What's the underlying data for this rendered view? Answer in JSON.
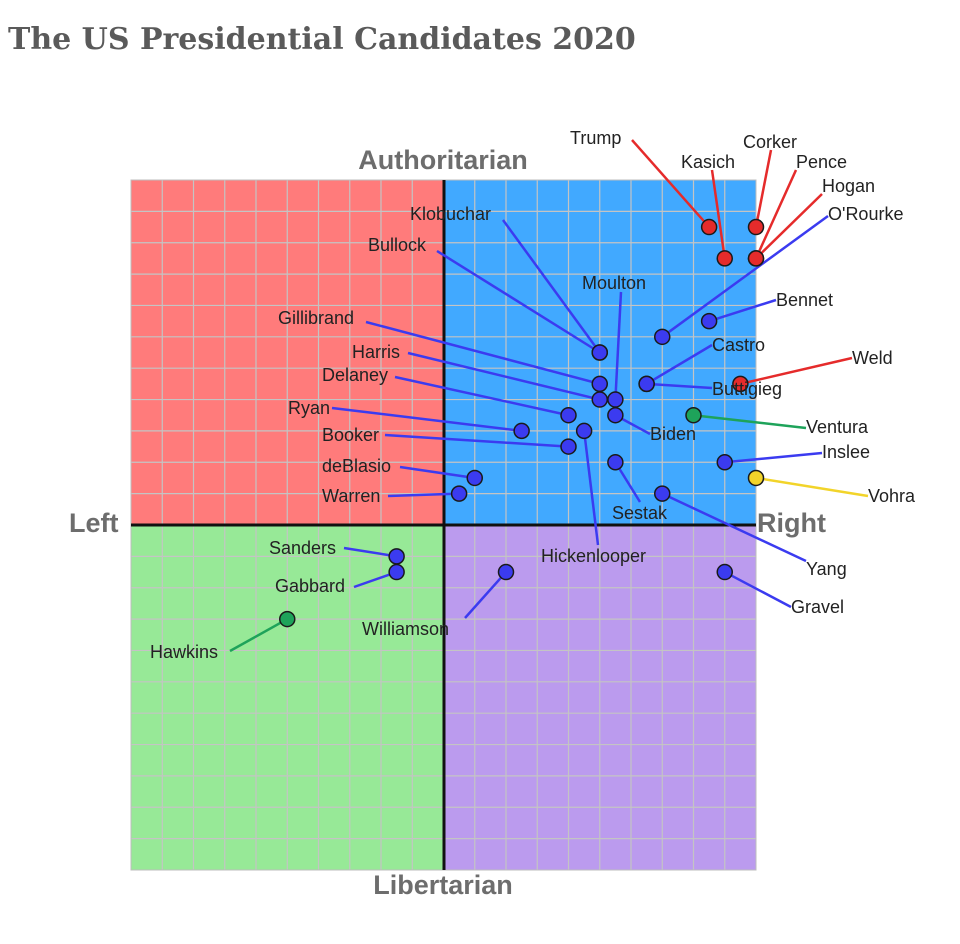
{
  "title": "The US Presidential Candidates 2020",
  "chart_data": {
    "type": "scatter",
    "title": "The US Presidential Candidates 2020",
    "axes": {
      "top": "Authoritarian",
      "bottom": "Libertarian",
      "left": "Left",
      "right": "Right"
    },
    "xlim": [
      -10,
      10
    ],
    "ylim": [
      -11,
      11
    ],
    "grid": true,
    "quadrant_colors": {
      "authoritarian_left": "#ff7b7b",
      "authoritarian_right": "#41a9ff",
      "libertarian_left": "#97e997",
      "libertarian_right": "#bb9bee"
    },
    "party_colors": {
      "republican": "#e52b2b",
      "democrat": "#3b3bf0",
      "green": "#1ea35a",
      "libertarian": "#f2d42a"
    },
    "points": [
      {
        "name": "Trump",
        "x": 8.5,
        "y": 9.5,
        "party": "republican"
      },
      {
        "name": "Kasich",
        "x": 9.0,
        "y": 8.5,
        "party": "republican"
      },
      {
        "name": "Corker",
        "x": 10.0,
        "y": 9.5,
        "party": "republican"
      },
      {
        "name": "Pence",
        "x": 10.0,
        "y": 8.5,
        "party": "republican"
      },
      {
        "name": "Hogan",
        "x": 10.0,
        "y": 8.5,
        "party": "republican"
      },
      {
        "name": "O'Rourke",
        "x": 7.0,
        "y": 6.0,
        "party": "democrat"
      },
      {
        "name": "Bennet",
        "x": 8.5,
        "y": 6.5,
        "party": "democrat"
      },
      {
        "name": "Weld",
        "x": 9.5,
        "y": 4.5,
        "party": "republican"
      },
      {
        "name": "Castro",
        "x": 6.5,
        "y": 4.5,
        "party": "democrat"
      },
      {
        "name": "Buttigieg",
        "x": 6.5,
        "y": 4.5,
        "party": "democrat"
      },
      {
        "name": "Klobuchar",
        "x": 5.0,
        "y": 5.5,
        "party": "democrat"
      },
      {
        "name": "Bullock",
        "x": 5.0,
        "y": 5.5,
        "party": "democrat"
      },
      {
        "name": "Moulton",
        "x": 5.5,
        "y": 4.0,
        "party": "democrat"
      },
      {
        "name": "Gillibrand",
        "x": 5.0,
        "y": 4.5,
        "party": "democrat"
      },
      {
        "name": "Harris",
        "x": 5.0,
        "y": 4.0,
        "party": "democrat"
      },
      {
        "name": "Delaney",
        "x": 4.0,
        "y": 3.5,
        "party": "democrat"
      },
      {
        "name": "Biden",
        "x": 5.5,
        "y": 3.5,
        "party": "democrat"
      },
      {
        "name": "Ventura",
        "x": 8.0,
        "y": 3.5,
        "party": "green"
      },
      {
        "name": "Ryan",
        "x": 2.5,
        "y": 3.0,
        "party": "democrat"
      },
      {
        "name": "Hickenlooper",
        "x": 4.5,
        "y": 3.0,
        "party": "democrat"
      },
      {
        "name": "Booker",
        "x": 4.0,
        "y": 2.5,
        "party": "democrat"
      },
      {
        "name": "Sestak",
        "x": 5.5,
        "y": 2.0,
        "party": "democrat"
      },
      {
        "name": "Inslee",
        "x": 9.0,
        "y": 2.0,
        "party": "democrat"
      },
      {
        "name": "Vohra",
        "x": 10.0,
        "y": 1.5,
        "party": "libertarian"
      },
      {
        "name": "deBlasio",
        "x": 1.0,
        "y": 1.5,
        "party": "democrat"
      },
      {
        "name": "Warren",
        "x": 0.5,
        "y": 1.0,
        "party": "democrat"
      },
      {
        "name": "Yang",
        "x": 7.0,
        "y": 1.0,
        "party": "democrat"
      },
      {
        "name": "Sanders",
        "x": -1.5,
        "y": -1.0,
        "party": "democrat"
      },
      {
        "name": "Gabbard",
        "x": -1.5,
        "y": -1.5,
        "party": "democrat"
      },
      {
        "name": "Williamson",
        "x": 2.0,
        "y": -1.5,
        "party": "democrat"
      },
      {
        "name": "Gravel",
        "x": 9.0,
        "y": -1.5,
        "party": "democrat"
      },
      {
        "name": "Hawkins",
        "x": -5.0,
        "y": -3.0,
        "party": "green"
      }
    ]
  }
}
